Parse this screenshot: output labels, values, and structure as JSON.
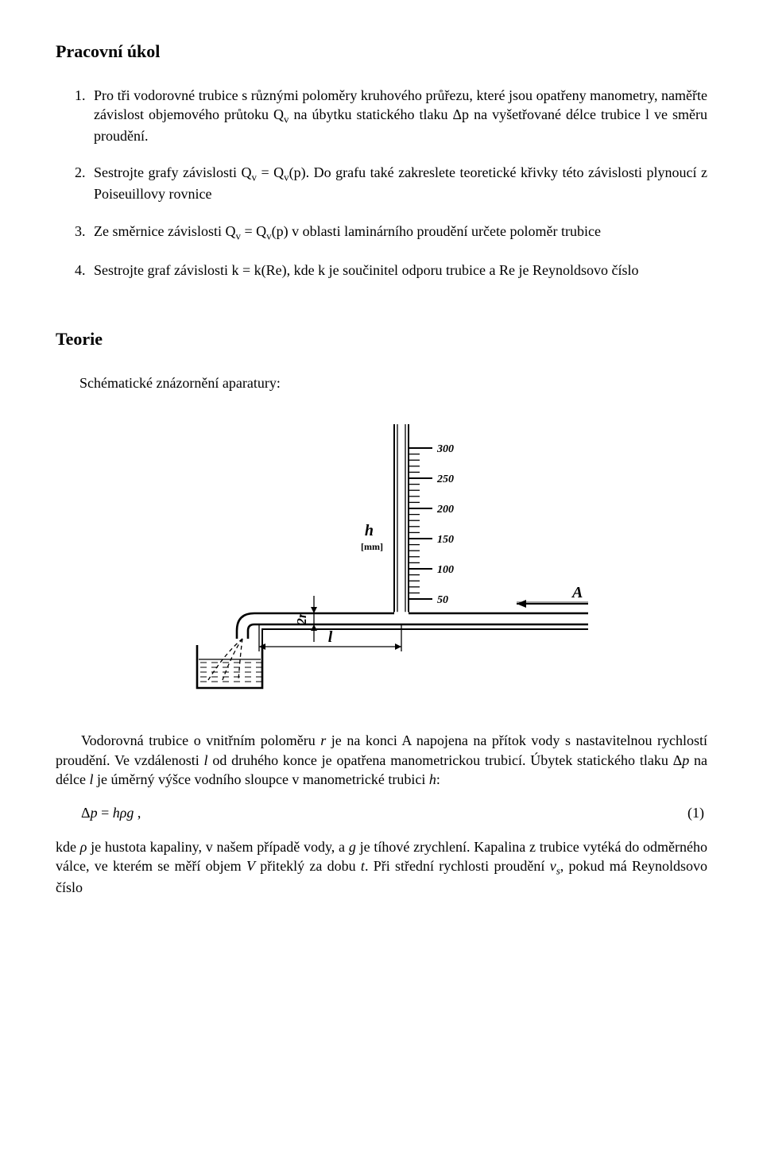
{
  "title": "Pracovní úkol",
  "tasks": [
    "Pro tři vodorovné trubice s různými poloměry kruhového průřezu, které jsou opatřeny manometry, naměřte závislost objemového průtoku Qv na úbytku statického tlaku Δp na vyšetřované délce trubice l ve směru proudění.",
    "Sestrojte grafy závislosti Qv = Qv(p). Do grafu také zakreslete teoretické křivky této závislosti plynoucí z Poiseuillovy rovnice",
    "Ze směrnice závislosti Qv = Qv(p) v oblasti laminárního proudění určete poloměr trubice",
    "Sestrojte graf závislosti k = k(Re), kde k je součinitel odporu trubice a Re je Reynoldsovo číslo"
  ],
  "theory_heading": "Teorie",
  "schematic_label": "Schématické znázornění aparatury:",
  "para_after_fig": "Vodorovná trubice o vnitřním poloměru r je na konci A napojena na přítok vody s nastavitelnou rychlostí proudění. Ve vzdálenosti l od druhého konce je opatřena manometrickou trubicí. Úbytek statického tlaku Δp na délce l je úměrný výšce vodního sloupce v manometrické trubici h:",
  "equation1": "Δp = hρg ,",
  "equation1_num": "(1)",
  "para_last": "kde ρ je hustota kapaliny, v našem případě vody, a g je tíhové zrychlení. Kapalina z trubice vytéká do odměrného válce, ve kterém se měří objem V přiteklý za dobu t. Při střední rychlosti proudění vs, pokud má Reynoldsovo číslo",
  "figure": {
    "scale_values": [
      "300",
      "250",
      "200",
      "150",
      "100",
      "50"
    ],
    "h_lab": "h",
    "h_unit": "[mm]",
    "r_lab": "2r",
    "l_lab": "l",
    "a_lab": "A",
    "colors": {
      "stroke": "#000000",
      "bg": "#ffffff"
    },
    "stroke_thin": 1.3,
    "stroke_med": 2.0,
    "stroke_thick": 2.6,
    "dash": "5,4",
    "font_scale": 14,
    "font_label": 17,
    "font_label_lg": 20
  }
}
